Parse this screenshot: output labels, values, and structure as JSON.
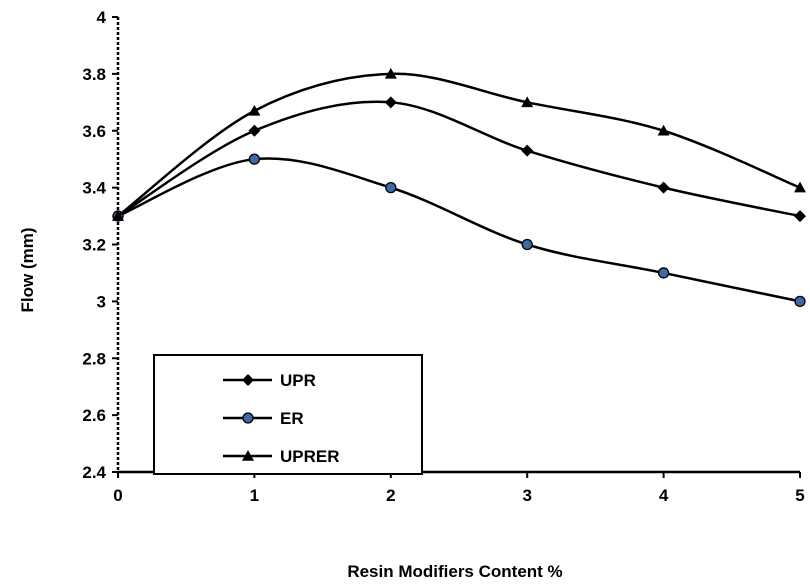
{
  "chart_data": {
    "type": "line",
    "xlabel": "Resin Modifiers Content %",
    "ylabel": "Flow (mm)",
    "xlim": [
      0,
      5
    ],
    "ylim": [
      2.4,
      4.0
    ],
    "x_ticks": [
      "0",
      "1",
      "2",
      "3",
      "4",
      "5"
    ],
    "y_ticks": [
      "2.4",
      "2.6",
      "2.8",
      "3",
      "3.2",
      "3.4",
      "3.6",
      "3.8",
      "4"
    ],
    "grid": false,
    "legend_position": "bottom-left",
    "x": [
      0,
      1,
      2,
      3,
      4,
      5
    ],
    "series": [
      {
        "name": "UPR",
        "marker": "diamond",
        "color": "#000000",
        "values": [
          3.3,
          3.6,
          3.7,
          3.53,
          3.4,
          3.3
        ]
      },
      {
        "name": "ER",
        "marker": "circle",
        "color": "#000000",
        "marker_fill": "#3d6aa6",
        "values": [
          3.3,
          3.5,
          3.4,
          3.2,
          3.1,
          3.0
        ]
      },
      {
        "name": "UPRER",
        "marker": "triangle",
        "color": "#000000",
        "values": [
          3.3,
          3.67,
          3.8,
          3.7,
          3.6,
          3.4
        ]
      }
    ]
  }
}
